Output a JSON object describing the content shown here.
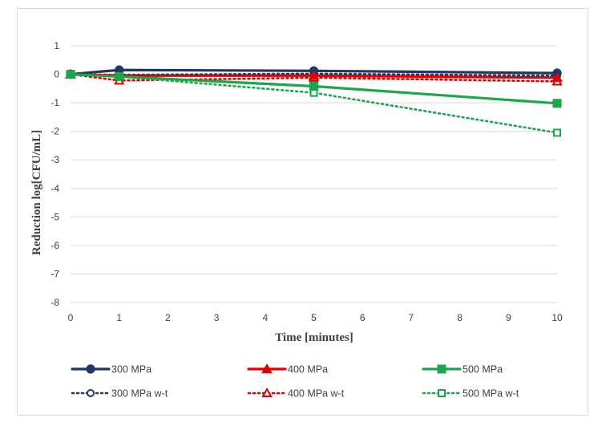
{
  "chart_data": {
    "type": "line",
    "title": "",
    "xlabel": "Time [minutes]",
    "ylabel": "Reduction log[CFU/mL]",
    "xlim": [
      0,
      10
    ],
    "ylim": [
      -8,
      1
    ],
    "xticks": [
      "0",
      "1",
      "2",
      "3",
      "4",
      "5",
      "6",
      "7",
      "8",
      "9",
      "10"
    ],
    "yticks": [
      "1",
      "0",
      "-1",
      "-2",
      "-3",
      "-4",
      "-5",
      "-6",
      "-7",
      "-8"
    ],
    "grid": "horizontal",
    "legend_position": "bottom",
    "series": [
      {
        "name": "300 MPa",
        "color": "#1f3864",
        "style": "solid",
        "marker": "circle",
        "x": [
          0,
          1,
          5,
          10
        ],
        "y": [
          0,
          0.15,
          0.12,
          0.04
        ]
      },
      {
        "name": "400 MPa",
        "color": "#e00000",
        "style": "solid",
        "marker": "triangle",
        "x": [
          0,
          1,
          5,
          10
        ],
        "y": [
          0,
          -0.05,
          -0.05,
          -0.12
        ]
      },
      {
        "name": "500 MPa",
        "color": "#1aa64a",
        "style": "solid",
        "marker": "square",
        "x": [
          0,
          1,
          5,
          10
        ],
        "y": [
          0,
          -0.08,
          -0.42,
          -1.02
        ]
      },
      {
        "name": "300 MPa w-t",
        "color": "#1f3864",
        "style": "dotted",
        "marker": "circle-open",
        "x": [
          0,
          1,
          5,
          10
        ],
        "y": [
          0,
          -0.02,
          0.02,
          -0.05
        ]
      },
      {
        "name": "400 MPa w-t",
        "color": "#e00000",
        "style": "dotted",
        "marker": "triangle-open",
        "x": [
          0,
          1,
          5,
          10
        ],
        "y": [
          0,
          -0.22,
          -0.12,
          -0.25
        ]
      },
      {
        "name": "500 MPa w-t",
        "color": "#1aa64a",
        "style": "dotted",
        "marker": "square-open",
        "x": [
          0,
          1,
          5,
          10
        ],
        "y": [
          0,
          -0.08,
          -0.65,
          -2.05
        ]
      }
    ]
  }
}
